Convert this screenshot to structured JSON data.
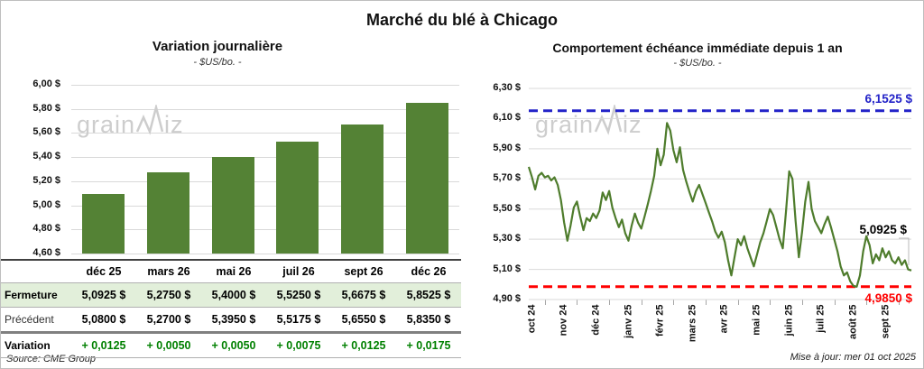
{
  "title": "Marché du blé à Chicago",
  "source": "Source: CME Group",
  "updated": "Mise à jour: mer 01 oct 2025",
  "watermark": {
    "part1": "grain",
    "part2": "iz",
    "logo": "zigzag-w"
  },
  "colors": {
    "bar_green": "#548235",
    "line_green": "#4e7c2c",
    "table_row_green": "#e2efda",
    "variation_green": "#008000",
    "max_blue": "#2323c8",
    "min_red": "#ff0000",
    "grid": "#d9d9d9"
  },
  "left_panel": {
    "title": "Variation journalière",
    "subtitle": "- $US/bo. -",
    "table": {
      "columns": [
        "déc 25",
        "mars 26",
        "mai 26",
        "juil 26",
        "sept 26",
        "déc 26"
      ],
      "rows": [
        {
          "label": "Fermeture",
          "style": "fermeture",
          "values": [
            "5,0925 $",
            "5,2750 $",
            "5,4000 $",
            "5,5250 $",
            "5,6675 $",
            "5,8525 $"
          ]
        },
        {
          "label": "Précédent",
          "style": "precedent",
          "values": [
            "5,0800 $",
            "5,2700 $",
            "5,3950 $",
            "5,5175 $",
            "5,6550 $",
            "5,8350 $"
          ]
        },
        {
          "label": "Variation",
          "style": "variation",
          "values": [
            "+ 0,0125",
            "+ 0,0050",
            "+ 0,0050",
            "+ 0,0075",
            "+ 0,0125",
            "+ 0,0175"
          ]
        }
      ]
    }
  },
  "right_panel": {
    "title": "Comportement échéance immédiate depuis 1 an",
    "subtitle": "- $US/bo. -"
  },
  "chart_data": [
    {
      "type": "bar",
      "title": "Variation journalière",
      "subtitle": "- $US/bo. -",
      "categories": [
        "déc 25",
        "mars 26",
        "mai 26",
        "juil 26",
        "sept 26",
        "déc 26"
      ],
      "values": [
        5.0925,
        5.275,
        5.4,
        5.525,
        5.6675,
        5.8525
      ],
      "ylim": [
        4.6,
        6.0
      ],
      "ytick_labels": [
        "6,00 $",
        "5,80 $",
        "5,60 $",
        "5,40 $",
        "5,20 $",
        "5,00 $",
        "4,80 $",
        "4,60 $"
      ],
      "grid": true,
      "bar_color": "#548235"
    },
    {
      "type": "line",
      "title": "Comportement échéance immédiate depuis 1 an",
      "subtitle": "- $US/bo. -",
      "x_tick_labels": [
        "oct 24",
        "nov 24",
        "déc 24",
        "janv 25",
        "févr 25",
        "mars 25",
        "avr 25",
        "mai 25",
        "juin 25",
        "juil 25",
        "août 25",
        "sept 25"
      ],
      "ylim": [
        4.9,
        6.3
      ],
      "ytick_labels": [
        "6,30 $",
        "6,10 $",
        "5,90 $",
        "5,70 $",
        "5,50 $",
        "5,30 $",
        "5,10 $",
        "4,90 $"
      ],
      "grid": true,
      "line_color": "#4e7c2c",
      "annotations": {
        "max": {
          "value": 6.1525,
          "label": "6,1525 $",
          "color": "#2323c8",
          "style": "dashed"
        },
        "min": {
          "value": 4.985,
          "label": "4,9850 $",
          "color": "#ff0000",
          "style": "dashed"
        },
        "last": {
          "value": 5.0925,
          "label": "5,0925 $",
          "color": "#000000"
        }
      },
      "values": [
        5.78,
        5.71,
        5.63,
        5.72,
        5.74,
        5.71,
        5.72,
        5.69,
        5.71,
        5.66,
        5.56,
        5.41,
        5.29,
        5.39,
        5.51,
        5.55,
        5.45,
        5.36,
        5.44,
        5.42,
        5.47,
        5.44,
        5.49,
        5.61,
        5.56,
        5.62,
        5.51,
        5.44,
        5.38,
        5.43,
        5.34,
        5.29,
        5.39,
        5.47,
        5.41,
        5.37,
        5.45,
        5.53,
        5.62,
        5.72,
        5.9,
        5.79,
        5.86,
        6.07,
        6.02,
        5.89,
        5.81,
        5.91,
        5.76,
        5.68,
        5.61,
        5.55,
        5.62,
        5.66,
        5.6,
        5.54,
        5.48,
        5.42,
        5.35,
        5.31,
        5.35,
        5.28,
        5.16,
        5.06,
        5.18,
        5.3,
        5.26,
        5.32,
        5.24,
        5.18,
        5.12,
        5.2,
        5.28,
        5.34,
        5.42,
        5.5,
        5.46,
        5.38,
        5.3,
        5.24,
        5.48,
        5.75,
        5.7,
        5.42,
        5.18,
        5.35,
        5.55,
        5.68,
        5.5,
        5.42,
        5.38,
        5.34,
        5.4,
        5.45,
        5.38,
        5.3,
        5.22,
        5.12,
        5.06,
        5.08,
        5.02,
        4.99,
        4.985,
        5.06,
        5.22,
        5.32,
        5.26,
        5.14,
        5.2,
        5.16,
        5.24,
        5.18,
        5.22,
        5.16,
        5.14,
        5.18,
        5.13,
        5.16,
        5.1,
        5.0925
      ]
    }
  ]
}
